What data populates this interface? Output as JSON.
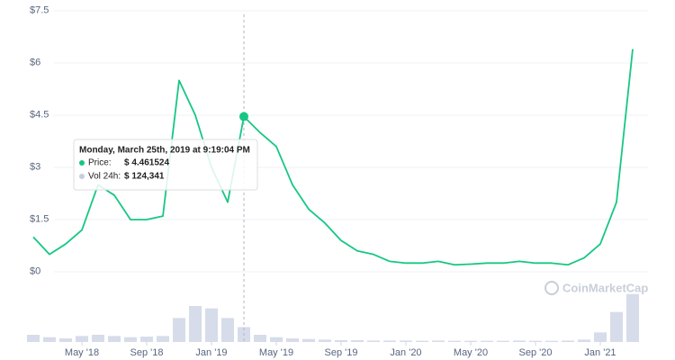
{
  "chart_data": {
    "type": "line",
    "x": [
      "2018-02",
      "2018-03",
      "2018-04",
      "2018-05",
      "2018-06",
      "2018-07",
      "2018-08",
      "2018-09",
      "2018-10",
      "2018-11",
      "2018-12",
      "2019-01",
      "2019-02",
      "2019-03",
      "2019-04",
      "2019-05",
      "2019-06",
      "2019-07",
      "2019-08",
      "2019-09",
      "2019-10",
      "2019-11",
      "2019-12",
      "2020-01",
      "2020-02",
      "2020-03",
      "2020-04",
      "2020-05",
      "2020-06",
      "2020-07",
      "2020-08",
      "2020-09",
      "2020-10",
      "2020-11",
      "2020-12",
      "2021-01",
      "2021-02",
      "2021-03"
    ],
    "series": [
      {
        "name": "Price",
        "color": "#16c784",
        "values": [
          1.0,
          0.5,
          0.8,
          1.2,
          2.5,
          2.2,
          1.5,
          1.5,
          1.6,
          5.5,
          4.5,
          3.0,
          2.0,
          4.46,
          4.0,
          3.6,
          2.5,
          1.8,
          1.4,
          0.9,
          0.6,
          0.5,
          0.3,
          0.25,
          0.25,
          0.3,
          0.2,
          0.22,
          0.25,
          0.25,
          0.3,
          0.25,
          0.25,
          0.2,
          0.4,
          0.8,
          2.0,
          6.4
        ]
      },
      {
        "name": "Vol 24h",
        "color": "#c5cde0",
        "axis": "y2",
        "values": [
          60000,
          40000,
          30000,
          50000,
          60000,
          50000,
          40000,
          45000,
          50000,
          200000,
          300000,
          280000,
          200000,
          124341,
          60000,
          40000,
          30000,
          25000,
          20000,
          15000,
          15000,
          12000,
          12000,
          12000,
          10000,
          12000,
          10000,
          10000,
          10000,
          10000,
          12000,
          10000,
          10000,
          12000,
          20000,
          80000,
          250000,
          400000
        ]
      }
    ],
    "ylim": [
      0,
      7.5
    ],
    "yticks": [
      {
        "value": 0,
        "label": "$0"
      },
      {
        "value": 1.5,
        "label": "$1.5"
      },
      {
        "value": 3,
        "label": "$3"
      },
      {
        "value": 4.5,
        "label": "$4.5"
      },
      {
        "value": 6,
        "label": "$6"
      },
      {
        "value": 7.5,
        "label": "$7.5"
      }
    ],
    "y2lim": [
      0,
      450000
    ],
    "xticks": [
      {
        "value": "2018-05",
        "label": "May '18"
      },
      {
        "value": "2018-09",
        "label": "Sep '18"
      },
      {
        "value": "2019-01",
        "label": "Jan '19"
      },
      {
        "value": "2019-05",
        "label": "May '19"
      },
      {
        "value": "2019-09",
        "label": "Sep '19"
      },
      {
        "value": "2020-01",
        "label": "Jan '20"
      },
      {
        "value": "2020-05",
        "label": "May '20"
      },
      {
        "value": "2020-09",
        "label": "Sep '20"
      },
      {
        "value": "2021-01",
        "label": "Jan '21"
      }
    ],
    "grid": true,
    "watermark": "CoinMarketCap",
    "tooltip": {
      "title": "Monday, March 25th, 2019 at 9:19:04 PM",
      "price_label": "Price:",
      "price": "$ 4.461524",
      "volume_label": "Vol 24h:",
      "volume": "$ 124,341",
      "index": 13
    }
  }
}
